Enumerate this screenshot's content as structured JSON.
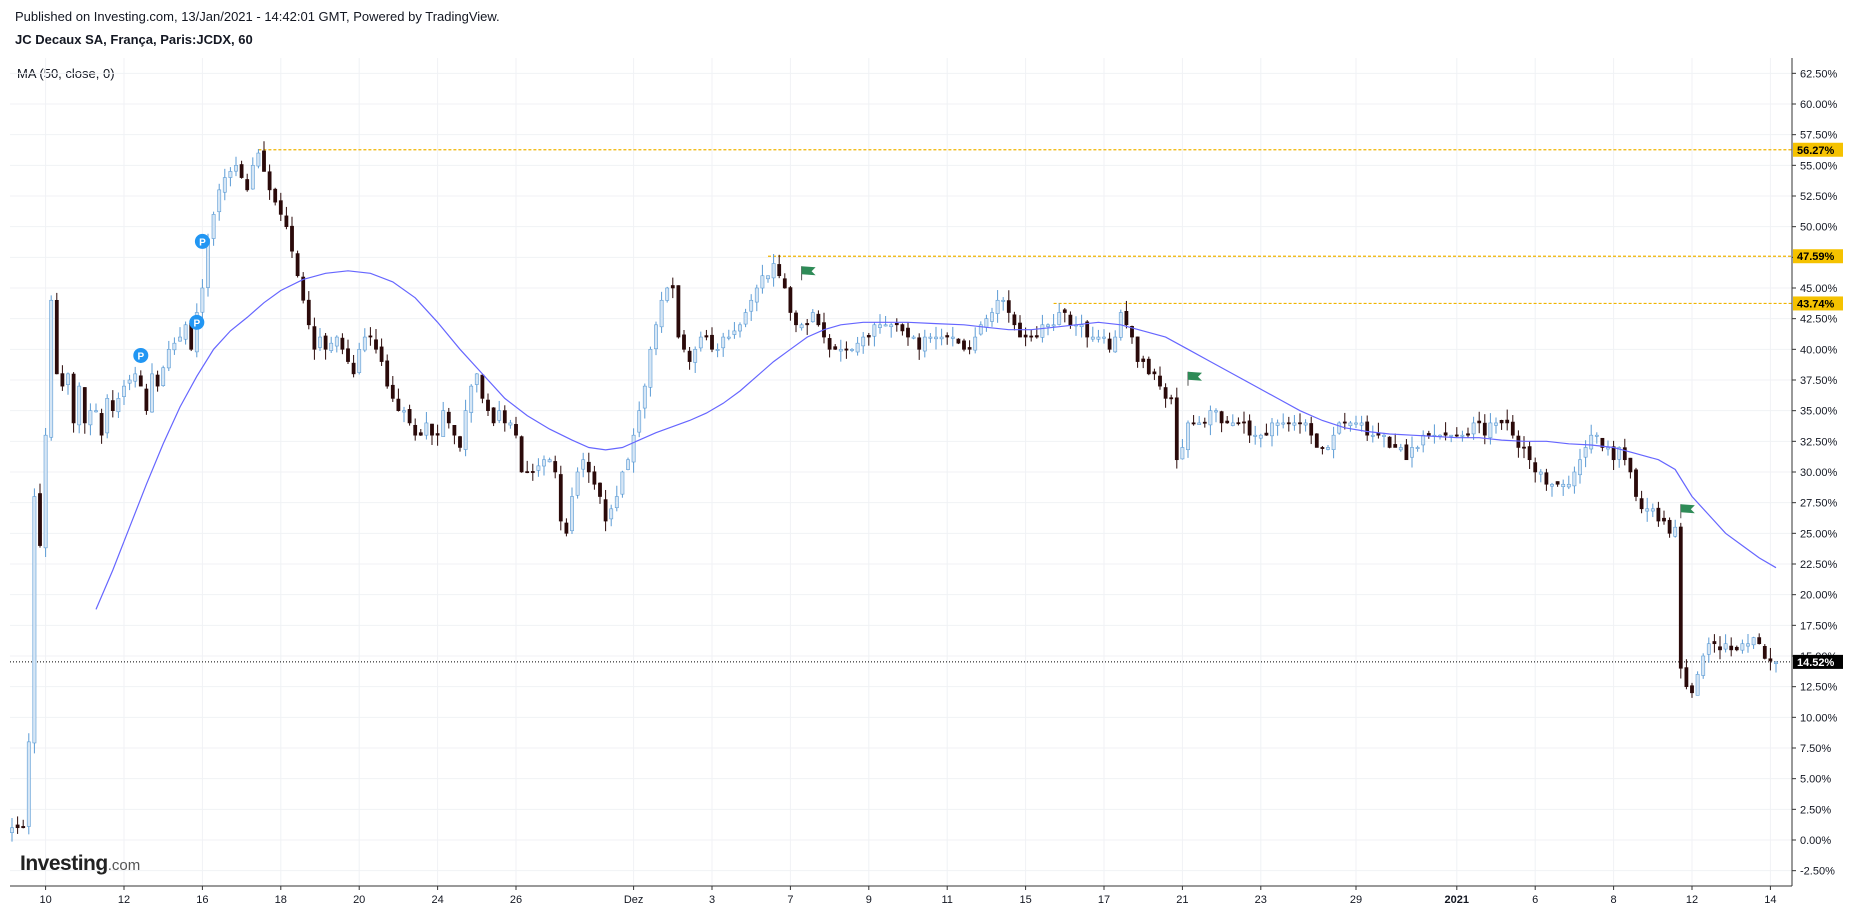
{
  "header": {
    "published": "Published on Investing.com, 13/Jan/2021 - 14:42:01 GMT, Powered by TradingView.",
    "symbol": "JC Decaux SA, França, Paris:JCDX, 60"
  },
  "indicator_label": "MA (50, close, 0)",
  "logo": {
    "main": "Investing",
    "suffix": ".com"
  },
  "colors": {
    "up_candle": "#d6e6f5",
    "up_outline": "#5b9bd5",
    "down_candle": "#2b0a0a",
    "ma_line": "#6666ff",
    "level_line": "#f0b400",
    "level_label_bg": "#f5c200",
    "current_bg": "#000000",
    "grid": "#f0f2f5",
    "flag": "#2e8b57",
    "pivot": "#2196f3"
  },
  "chart_data": {
    "type": "candlestick",
    "title": "JC Decaux SA, França, Paris:JCDX, 60",
    "y_unit": "%",
    "ylim": [
      -3.75,
      63.75
    ],
    "y_ticks": [
      "62.50%",
      "60.00%",
      "57.50%",
      "55.00%",
      "52.50%",
      "50.00%",
      "47.50%",
      "45.00%",
      "42.50%",
      "40.00%",
      "37.50%",
      "35.00%",
      "32.50%",
      "30.00%",
      "27.50%",
      "25.00%",
      "22.50%",
      "20.00%",
      "17.50%",
      "15.00%",
      "12.50%",
      "10.00%",
      "7.50%",
      "5.00%",
      "2.50%",
      "0.00%",
      "-2.50%"
    ],
    "x_ticks": [
      {
        "label": "10",
        "i": 6,
        "bold": false
      },
      {
        "label": "12",
        "i": 20,
        "bold": false
      },
      {
        "label": "16",
        "i": 34,
        "bold": false
      },
      {
        "label": "18",
        "i": 48,
        "bold": false
      },
      {
        "label": "20",
        "i": 62,
        "bold": false
      },
      {
        "label": "24",
        "i": 76,
        "bold": false
      },
      {
        "label": "26",
        "i": 90,
        "bold": false
      },
      {
        "label": "Dez",
        "i": 111,
        "bold": false
      },
      {
        "label": "3",
        "i": 125,
        "bold": false
      },
      {
        "label": "7",
        "i": 139,
        "bold": false
      },
      {
        "label": "9",
        "i": 153,
        "bold": false
      },
      {
        "label": "11",
        "i": 167,
        "bold": false
      },
      {
        "label": "15",
        "i": 181,
        "bold": false
      },
      {
        "label": "17",
        "i": 195,
        "bold": false
      },
      {
        "label": "21",
        "i": 209,
        "bold": false
      },
      {
        "label": "23",
        "i": 223,
        "bold": false
      },
      {
        "label": "29",
        "i": 240,
        "bold": false
      },
      {
        "label": "2021",
        "i": 258,
        "bold": true
      },
      {
        "label": "6",
        "i": 272,
        "bold": false
      },
      {
        "label": "8",
        "i": 286,
        "bold": false
      },
      {
        "label": "12",
        "i": 300,
        "bold": false
      },
      {
        "label": "14",
        "i": 314,
        "bold": false
      }
    ],
    "anchors": [
      [
        0,
        1
      ],
      [
        2,
        1
      ],
      [
        3,
        8
      ],
      [
        4,
        28
      ],
      [
        5,
        24
      ],
      [
        6,
        33
      ],
      [
        7,
        44
      ],
      [
        8,
        38
      ],
      [
        9,
        37
      ],
      [
        10,
        38
      ],
      [
        11,
        34
      ],
      [
        12,
        37
      ],
      [
        13,
        34
      ],
      [
        14,
        35
      ],
      [
        15,
        35
      ],
      [
        16,
        33
      ],
      [
        17,
        36
      ],
      [
        18,
        35
      ],
      [
        20,
        37
      ],
      [
        22,
        38
      ],
      [
        23,
        37
      ],
      [
        24,
        35
      ],
      [
        25,
        38
      ],
      [
        26,
        37
      ],
      [
        28,
        40
      ],
      [
        30,
        41
      ],
      [
        31,
        42
      ],
      [
        32,
        40
      ],
      [
        33,
        43
      ],
      [
        34,
        45
      ],
      [
        35,
        49
      ],
      [
        36,
        51
      ],
      [
        37,
        53
      ],
      [
        38,
        54
      ],
      [
        40,
        55
      ],
      [
        41,
        54
      ],
      [
        42,
        53
      ],
      [
        43,
        55
      ],
      [
        44,
        56
      ],
      [
        46,
        53
      ],
      [
        47,
        52
      ],
      [
        48,
        51
      ],
      [
        49,
        50
      ],
      [
        50,
        48
      ],
      [
        51,
        46
      ],
      [
        52,
        44
      ],
      [
        53,
        42
      ],
      [
        54,
        40
      ],
      [
        55,
        41
      ],
      [
        56,
        40
      ],
      [
        58,
        41
      ],
      [
        60,
        39
      ],
      [
        61,
        38
      ],
      [
        62,
        40
      ],
      [
        63,
        41
      ],
      [
        64,
        41
      ],
      [
        65,
        40
      ],
      [
        66,
        39
      ],
      [
        67,
        37
      ],
      [
        68,
        36
      ],
      [
        69,
        35
      ],
      [
        70,
        35
      ],
      [
        71,
        34
      ],
      [
        72,
        33
      ],
      [
        73,
        33
      ],
      [
        74,
        34
      ],
      [
        75,
        33
      ],
      [
        76,
        33
      ],
      [
        77,
        35
      ],
      [
        78,
        34
      ],
      [
        79,
        33
      ],
      [
        80,
        32
      ],
      [
        81,
        35
      ],
      [
        82,
        37
      ],
      [
        83,
        38
      ],
      [
        84,
        36
      ],
      [
        85,
        35
      ],
      [
        86,
        34
      ],
      [
        87,
        35
      ],
      [
        88,
        34
      ],
      [
        89,
        34
      ],
      [
        90,
        33
      ],
      [
        91,
        30
      ],
      [
        93,
        30
      ],
      [
        95,
        31
      ],
      [
        96,
        31
      ],
      [
        97,
        30
      ],
      [
        98,
        26
      ],
      [
        99,
        25
      ],
      [
        100,
        28
      ],
      [
        101,
        30
      ],
      [
        102,
        31
      ],
      [
        103,
        30
      ],
      [
        104,
        29
      ],
      [
        105,
        28
      ],
      [
        106,
        26
      ],
      [
        107,
        27
      ],
      [
        108,
        28
      ],
      [
        109,
        30
      ],
      [
        110,
        31
      ],
      [
        111,
        33
      ],
      [
        112,
        35
      ],
      [
        113,
        37
      ],
      [
        114,
        40
      ],
      [
        115,
        42
      ],
      [
        116,
        44
      ],
      [
        117,
        45
      ],
      [
        118,
        45
      ],
      [
        119,
        41
      ],
      [
        120,
        40
      ],
      [
        121,
        39
      ],
      [
        122,
        40
      ],
      [
        123,
        41
      ],
      [
        124,
        41
      ],
      [
        125,
        40
      ],
      [
        126,
        40
      ],
      [
        127,
        41
      ],
      [
        128,
        41
      ],
      [
        130,
        42
      ],
      [
        131,
        43
      ],
      [
        132,
        44
      ],
      [
        133,
        45
      ],
      [
        134,
        46
      ],
      [
        135,
        46
      ],
      [
        136,
        47
      ],
      [
        137,
        46
      ],
      [
        138,
        45
      ],
      [
        139,
        43
      ],
      [
        140,
        42
      ],
      [
        141,
        42
      ],
      [
        142,
        42
      ],
      [
        143,
        43
      ],
      [
        144,
        42
      ],
      [
        145,
        41
      ],
      [
        146,
        40
      ],
      [
        147,
        40
      ],
      [
        148,
        40
      ],
      [
        150,
        40
      ],
      [
        152,
        41
      ],
      [
        153,
        41
      ],
      [
        154,
        42
      ],
      [
        155,
        42
      ],
      [
        156,
        42
      ],
      [
        158,
        42
      ],
      [
        160,
        41
      ],
      [
        161,
        41
      ],
      [
        162,
        40
      ],
      [
        163,
        41
      ],
      [
        164,
        41
      ],
      [
        165,
        41
      ],
      [
        166,
        41
      ],
      [
        168,
        41
      ],
      [
        170,
        40
      ],
      [
        171,
        40
      ],
      [
        172,
        41
      ],
      [
        173,
        42
      ],
      [
        175,
        43
      ],
      [
        176,
        44
      ],
      [
        177,
        44
      ],
      [
        178,
        43
      ],
      [
        179,
        42
      ],
      [
        180,
        41
      ],
      [
        181,
        41
      ],
      [
        182,
        41
      ],
      [
        183,
        41
      ],
      [
        184,
        42
      ],
      [
        185,
        42
      ],
      [
        186,
        42
      ],
      [
        187,
        43
      ],
      [
        188,
        43
      ],
      [
        189,
        42
      ],
      [
        190,
        42
      ],
      [
        191,
        42
      ],
      [
        192,
        41
      ],
      [
        193,
        41
      ],
      [
        194,
        41
      ],
      [
        195,
        41
      ],
      [
        196,
        40
      ],
      [
        197,
        41
      ],
      [
        198,
        43
      ],
      [
        199,
        42
      ],
      [
        200,
        41
      ],
      [
        201,
        39
      ],
      [
        202,
        39
      ],
      [
        203,
        38
      ],
      [
        204,
        38
      ],
      [
        205,
        37
      ],
      [
        206,
        36
      ],
      [
        207,
        36
      ],
      [
        208,
        31
      ],
      [
        209,
        32
      ],
      [
        210,
        34
      ],
      [
        211,
        34
      ],
      [
        212,
        34
      ],
      [
        213,
        34
      ],
      [
        214,
        35
      ],
      [
        215,
        35
      ],
      [
        216,
        34
      ],
      [
        217,
        34
      ],
      [
        218,
        34
      ],
      [
        219,
        34
      ],
      [
        220,
        34
      ],
      [
        221,
        33
      ],
      [
        222,
        33
      ],
      [
        223,
        33
      ],
      [
        224,
        33
      ],
      [
        225,
        34
      ],
      [
        226,
        34
      ],
      [
        227,
        34
      ],
      [
        228,
        34
      ],
      [
        229,
        34
      ],
      [
        230,
        34
      ],
      [
        231,
        34
      ],
      [
        232,
        33
      ],
      [
        233,
        32
      ],
      [
        234,
        32
      ],
      [
        235,
        32
      ],
      [
        236,
        33
      ],
      [
        237,
        34
      ],
      [
        238,
        34
      ],
      [
        239,
        34
      ],
      [
        240,
        34
      ],
      [
        241,
        34
      ],
      [
        242,
        33
      ],
      [
        243,
        33
      ],
      [
        244,
        33
      ],
      [
        245,
        33
      ],
      [
        246,
        32
      ],
      [
        247,
        32
      ],
      [
        248,
        32
      ],
      [
        249,
        31
      ],
      [
        250,
        32
      ],
      [
        251,
        32
      ],
      [
        252,
        33
      ],
      [
        253,
        33
      ],
      [
        254,
        33
      ],
      [
        255,
        33
      ],
      [
        256,
        33
      ],
      [
        257,
        33
      ],
      [
        258,
        33
      ],
      [
        259,
        33
      ],
      [
        260,
        33
      ],
      [
        261,
        34
      ],
      [
        262,
        34
      ],
      [
        263,
        33
      ],
      [
        264,
        34
      ],
      [
        265,
        34
      ],
      [
        266,
        34
      ],
      [
        267,
        34
      ],
      [
        268,
        33
      ],
      [
        269,
        32
      ],
      [
        270,
        32
      ],
      [
        271,
        31
      ],
      [
        272,
        30
      ],
      [
        273,
        30
      ],
      [
        274,
        29
      ],
      [
        275,
        29
      ],
      [
        276,
        29
      ],
      [
        277,
        29
      ],
      [
        278,
        29
      ],
      [
        279,
        30
      ],
      [
        280,
        31
      ],
      [
        281,
        32
      ],
      [
        282,
        33
      ],
      [
        283,
        33
      ],
      [
        284,
        32
      ],
      [
        285,
        32
      ],
      [
        286,
        31
      ],
      [
        287,
        32
      ],
      [
        288,
        31
      ],
      [
        289,
        30
      ],
      [
        290,
        28
      ],
      [
        291,
        27
      ],
      [
        292,
        27
      ],
      [
        293,
        27
      ],
      [
        294,
        26
      ],
      [
        295,
        26
      ],
      [
        296,
        25
      ],
      [
        297,
        25.5
      ],
      [
        298,
        14
      ],
      [
        299,
        12.5
      ],
      [
        300,
        12
      ],
      [
        301,
        13.5
      ],
      [
        302,
        15
      ],
      [
        303,
        16
      ],
      [
        304,
        16
      ],
      [
        305,
        15.5
      ],
      [
        306,
        16
      ],
      [
        307,
        15.5
      ],
      [
        308,
        15.5
      ],
      [
        309,
        16
      ],
      [
        310,
        16
      ],
      [
        311,
        16.5
      ],
      [
        312,
        16
      ],
      [
        313,
        14.8
      ],
      [
        314,
        14.6
      ],
      [
        315,
        14.5
      ]
    ],
    "ma_50": [
      [
        15,
        18.8
      ],
      [
        18,
        22
      ],
      [
        21,
        25.5
      ],
      [
        24,
        29
      ],
      [
        27,
        32.3
      ],
      [
        30,
        35.3
      ],
      [
        33,
        37.8
      ],
      [
        36,
        40
      ],
      [
        39,
        41.5
      ],
      [
        42,
        42.6
      ],
      [
        45,
        43.8
      ],
      [
        48,
        44.8
      ],
      [
        52,
        45.7
      ],
      [
        56,
        46.2
      ],
      [
        60,
        46.4
      ],
      [
        64,
        46.2
      ],
      [
        68,
        45.5
      ],
      [
        72,
        44.2
      ],
      [
        76,
        42.2
      ],
      [
        80,
        40
      ],
      [
        84,
        38
      ],
      [
        88,
        36
      ],
      [
        92,
        34.6
      ],
      [
        96,
        33.5
      ],
      [
        100,
        32.6
      ],
      [
        103,
        32
      ],
      [
        106,
        31.8
      ],
      [
        109,
        32
      ],
      [
        112,
        32.6
      ],
      [
        115,
        33.2
      ],
      [
        118,
        33.7
      ],
      [
        121,
        34.2
      ],
      [
        124,
        34.8
      ],
      [
        127,
        35.6
      ],
      [
        130,
        36.6
      ],
      [
        133,
        37.8
      ],
      [
        136,
        39
      ],
      [
        139,
        40
      ],
      [
        142,
        41
      ],
      [
        145,
        41.6
      ],
      [
        148,
        42
      ],
      [
        152,
        42.2
      ],
      [
        156,
        42.2
      ],
      [
        160,
        42.2
      ],
      [
        165,
        42.1
      ],
      [
        170,
        42
      ],
      [
        174,
        41.8
      ],
      [
        178,
        41.6
      ],
      [
        182,
        41.6
      ],
      [
        186,
        41.8
      ],
      [
        190,
        42
      ],
      [
        194,
        42.2
      ],
      [
        198,
        42
      ],
      [
        202,
        41.5
      ],
      [
        206,
        41
      ],
      [
        210,
        40
      ],
      [
        214,
        39
      ],
      [
        218,
        38
      ],
      [
        222,
        37
      ],
      [
        226,
        36
      ],
      [
        230,
        35
      ],
      [
        234,
        34.2
      ],
      [
        238,
        33.6
      ],
      [
        242,
        33.3
      ],
      [
        246,
        33.1
      ],
      [
        250,
        33
      ],
      [
        254,
        32.9
      ],
      [
        258,
        32.8
      ],
      [
        262,
        32.8
      ],
      [
        266,
        32.6
      ],
      [
        270,
        32.5
      ],
      [
        274,
        32.5
      ],
      [
        278,
        32.3
      ],
      [
        282,
        32.2
      ],
      [
        286,
        32
      ],
      [
        290,
        31.5
      ],
      [
        294,
        31
      ],
      [
        297,
        30.2
      ],
      [
        300,
        28
      ],
      [
        303,
        26.5
      ],
      [
        306,
        25
      ],
      [
        309,
        24
      ],
      [
        312,
        23
      ],
      [
        315,
        22.2
      ]
    ],
    "levels": [
      {
        "value": 56.27,
        "label": "56.27%",
        "from_i": 44
      },
      {
        "value": 47.59,
        "label": "47.59%",
        "from_i": 135
      },
      {
        "value": 43.74,
        "label": "43.74%",
        "from_i": 186
      }
    ],
    "current_price": {
      "value": 14.52,
      "label": "14.52%"
    },
    "pivots": [
      {
        "label": "P",
        "i": 23,
        "y": 39.5
      },
      {
        "label": "P",
        "i": 33,
        "y": 42.2
      },
      {
        "label": "P",
        "i": 34,
        "y": 48.8
      }
    ],
    "flags": [
      {
        "i": 141,
        "y": 46.2
      },
      {
        "i": 210,
        "y": 37.6
      },
      {
        "i": 298,
        "y": 26.8
      }
    ]
  }
}
